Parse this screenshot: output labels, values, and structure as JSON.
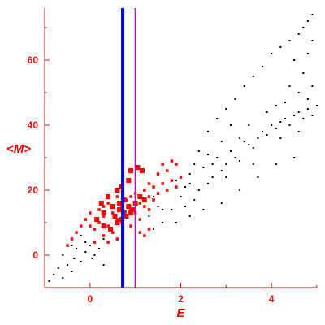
{
  "chart_data": {
    "type": "scatter",
    "xlabel": "E",
    "ylabel": "<M>",
    "xlim": [
      -1,
      5
    ],
    "ylim": [
      -10,
      76
    ],
    "xticks": [
      0,
      2,
      4
    ],
    "yticks": [
      0,
      20,
      40,
      60
    ],
    "grid": false,
    "legend": "none",
    "colors": {
      "axis": "#ff0000",
      "background_points": "#000000",
      "highlight_points": "#ff0000",
      "line_blue": "#0000ff",
      "line_magenta": "#cc00cc"
    },
    "vertical_lines": [
      {
        "x": 0.72,
        "color": "#0000ff"
      },
      {
        "x": 1.0,
        "color": "#cc00cc"
      }
    ],
    "series": [
      {
        "color": "#000000",
        "size": "small",
        "points": [
          [
            -0.9,
            -8
          ],
          [
            -0.8,
            -6
          ],
          [
            -0.7,
            -4
          ],
          [
            -0.6,
            -7
          ],
          [
            -0.5,
            -3
          ],
          [
            -0.4,
            -5
          ],
          [
            -0.35,
            -1
          ],
          [
            -0.3,
            2
          ],
          [
            -0.2,
            -2
          ],
          [
            -0.1,
            1
          ],
          [
            0.0,
            3
          ],
          [
            0.05,
            -1
          ],
          [
            0.1,
            0
          ],
          [
            0.2,
            2
          ],
          [
            0.3,
            -3
          ],
          [
            -0.6,
            0
          ],
          [
            -0.4,
            3
          ],
          [
            -0.2,
            6
          ],
          [
            -0.1,
            4
          ],
          [
            0.3,
            5
          ],
          [
            1.3,
            12
          ],
          [
            1.4,
            18
          ],
          [
            1.5,
            15
          ],
          [
            1.6,
            10
          ],
          [
            1.7,
            20
          ],
          [
            1.8,
            14
          ],
          [
            1.9,
            23
          ],
          [
            2.0,
            18
          ],
          [
            2.1,
            21
          ],
          [
            2.2,
            25
          ],
          [
            2.3,
            17
          ],
          [
            2.4,
            20
          ],
          [
            2.5,
            27
          ],
          [
            2.6,
            22
          ],
          [
            2.7,
            24
          ],
          [
            2.8,
            30
          ],
          [
            2.9,
            26
          ],
          [
            3.0,
            28
          ],
          [
            3.1,
            32
          ],
          [
            3.2,
            30
          ],
          [
            3.3,
            29
          ],
          [
            3.4,
            35
          ],
          [
            3.5,
            34
          ],
          [
            3.6,
            33
          ],
          [
            3.7,
            36
          ],
          [
            3.8,
            38
          ],
          [
            3.9,
            37
          ],
          [
            4.0,
            40
          ],
          [
            4.1,
            39
          ],
          [
            4.2,
            41
          ],
          [
            4.3,
            42
          ],
          [
            4.4,
            40
          ],
          [
            4.5,
            43
          ],
          [
            4.6,
            44
          ],
          [
            4.7,
            42
          ],
          [
            4.8,
            45
          ],
          [
            4.9,
            43
          ],
          [
            5.0,
            46
          ],
          [
            2.4,
            32
          ],
          [
            2.6,
            38
          ],
          [
            2.8,
            42
          ],
          [
            3.0,
            45
          ],
          [
            3.2,
            48
          ],
          [
            3.4,
            52
          ],
          [
            3.6,
            55
          ],
          [
            3.8,
            58
          ],
          [
            4.0,
            62
          ],
          [
            4.2,
            64
          ],
          [
            4.4,
            66
          ],
          [
            4.6,
            68
          ],
          [
            4.7,
            70
          ],
          [
            4.8,
            72
          ],
          [
            4.9,
            74
          ],
          [
            4.5,
            60
          ],
          [
            4.8,
            62
          ],
          [
            4.9,
            52
          ],
          [
            4.6,
            50
          ],
          [
            4.3,
            47
          ],
          [
            3.1,
            40
          ],
          [
            2.9,
            35
          ],
          [
            2.7,
            28
          ],
          [
            2.3,
            28
          ],
          [
            2.1,
            15
          ],
          [
            2.5,
            14
          ],
          [
            2.9,
            16
          ],
          [
            3.3,
            20
          ],
          [
            3.7,
            24
          ],
          [
            4.1,
            28
          ],
          [
            4.5,
            30
          ],
          [
            1.9,
            10
          ],
          [
            2.2,
            12
          ],
          [
            3.5,
            40
          ],
          [
            3.6,
            28
          ],
          [
            3.9,
            44
          ],
          [
            4.2,
            36
          ],
          [
            4.4,
            52
          ],
          [
            4.7,
            56
          ],
          [
            4.9,
            66
          ],
          [
            4.1,
            46
          ],
          [
            3.3,
            36
          ],
          [
            3.0,
            24
          ],
          [
            2.6,
            31
          ],
          [
            2.2,
            22
          ],
          [
            1.6,
            14
          ],
          [
            1.4,
            8
          ],
          [
            4.6,
            38
          ],
          [
            4.8,
            48
          ]
        ]
      },
      {
        "color": "#ff0000",
        "size": "medium",
        "points": [
          [
            -0.5,
            3
          ],
          [
            -0.4,
            5
          ],
          [
            -0.3,
            7
          ],
          [
            -0.2,
            9
          ],
          [
            -0.1,
            11
          ],
          [
            0.0,
            13
          ],
          [
            0.1,
            8
          ],
          [
            0.2,
            10
          ],
          [
            0.2,
            14
          ],
          [
            0.3,
            6
          ],
          [
            0.3,
            12
          ],
          [
            0.4,
            9
          ],
          [
            0.4,
            16
          ],
          [
            0.5,
            7
          ],
          [
            0.5,
            13
          ],
          [
            0.6,
            11
          ],
          [
            0.6,
            18
          ],
          [
            0.7,
            10
          ],
          [
            0.7,
            15
          ],
          [
            0.8,
            12
          ],
          [
            0.8,
            17
          ],
          [
            0.9,
            9
          ],
          [
            0.9,
            14
          ],
          [
            1.0,
            13
          ],
          [
            1.0,
            19
          ],
          [
            1.1,
            11
          ],
          [
            1.1,
            16
          ],
          [
            1.2,
            15
          ],
          [
            1.2,
            20
          ],
          [
            1.3,
            18
          ],
          [
            1.3,
            14
          ],
          [
            1.4,
            17
          ],
          [
            1.4,
            21
          ],
          [
            1.5,
            19
          ],
          [
            1.6,
            22
          ],
          [
            1.7,
            20
          ],
          [
            1.8,
            23
          ],
          [
            1.9,
            21
          ],
          [
            2.0,
            24
          ],
          [
            1.5,
            25
          ],
          [
            1.7,
            26
          ],
          [
            1.8,
            29
          ],
          [
            1.2,
            6
          ],
          [
            1.3,
            8
          ],
          [
            0.1,
            4
          ],
          [
            0.0,
            9
          ],
          [
            0.4,
            4
          ],
          [
            0.6,
            5
          ],
          [
            1.1,
            7
          ],
          [
            1.9,
            28
          ],
          [
            1.6,
            28
          ],
          [
            1.3,
            22
          ],
          [
            0.9,
            18
          ],
          [
            0.3,
            15
          ]
        ]
      },
      {
        "color": "#ff0000",
        "size": "large",
        "points": [
          [
            0.55,
            12
          ],
          [
            0.6,
            10
          ],
          [
            0.65,
            14
          ],
          [
            0.7,
            11
          ],
          [
            0.75,
            13
          ],
          [
            0.8,
            12
          ],
          [
            0.85,
            15
          ],
          [
            0.9,
            13
          ],
          [
            0.95,
            14
          ],
          [
            0.5,
            15
          ],
          [
            0.4,
            18
          ],
          [
            0.3,
            13
          ],
          [
            0.25,
            16
          ],
          [
            0.15,
            11
          ],
          [
            0.6,
            20
          ],
          [
            0.7,
            21
          ],
          [
            0.85,
            23
          ],
          [
            0.9,
            26
          ],
          [
            1.05,
            27
          ],
          [
            1.15,
            26
          ],
          [
            1.1,
            18
          ],
          [
            1.2,
            17
          ],
          [
            0.3,
            9
          ],
          [
            0.45,
            8
          ],
          [
            0.65,
            16
          ],
          [
            0.75,
            17
          ],
          [
            1.0,
            16
          ]
        ]
      }
    ]
  }
}
